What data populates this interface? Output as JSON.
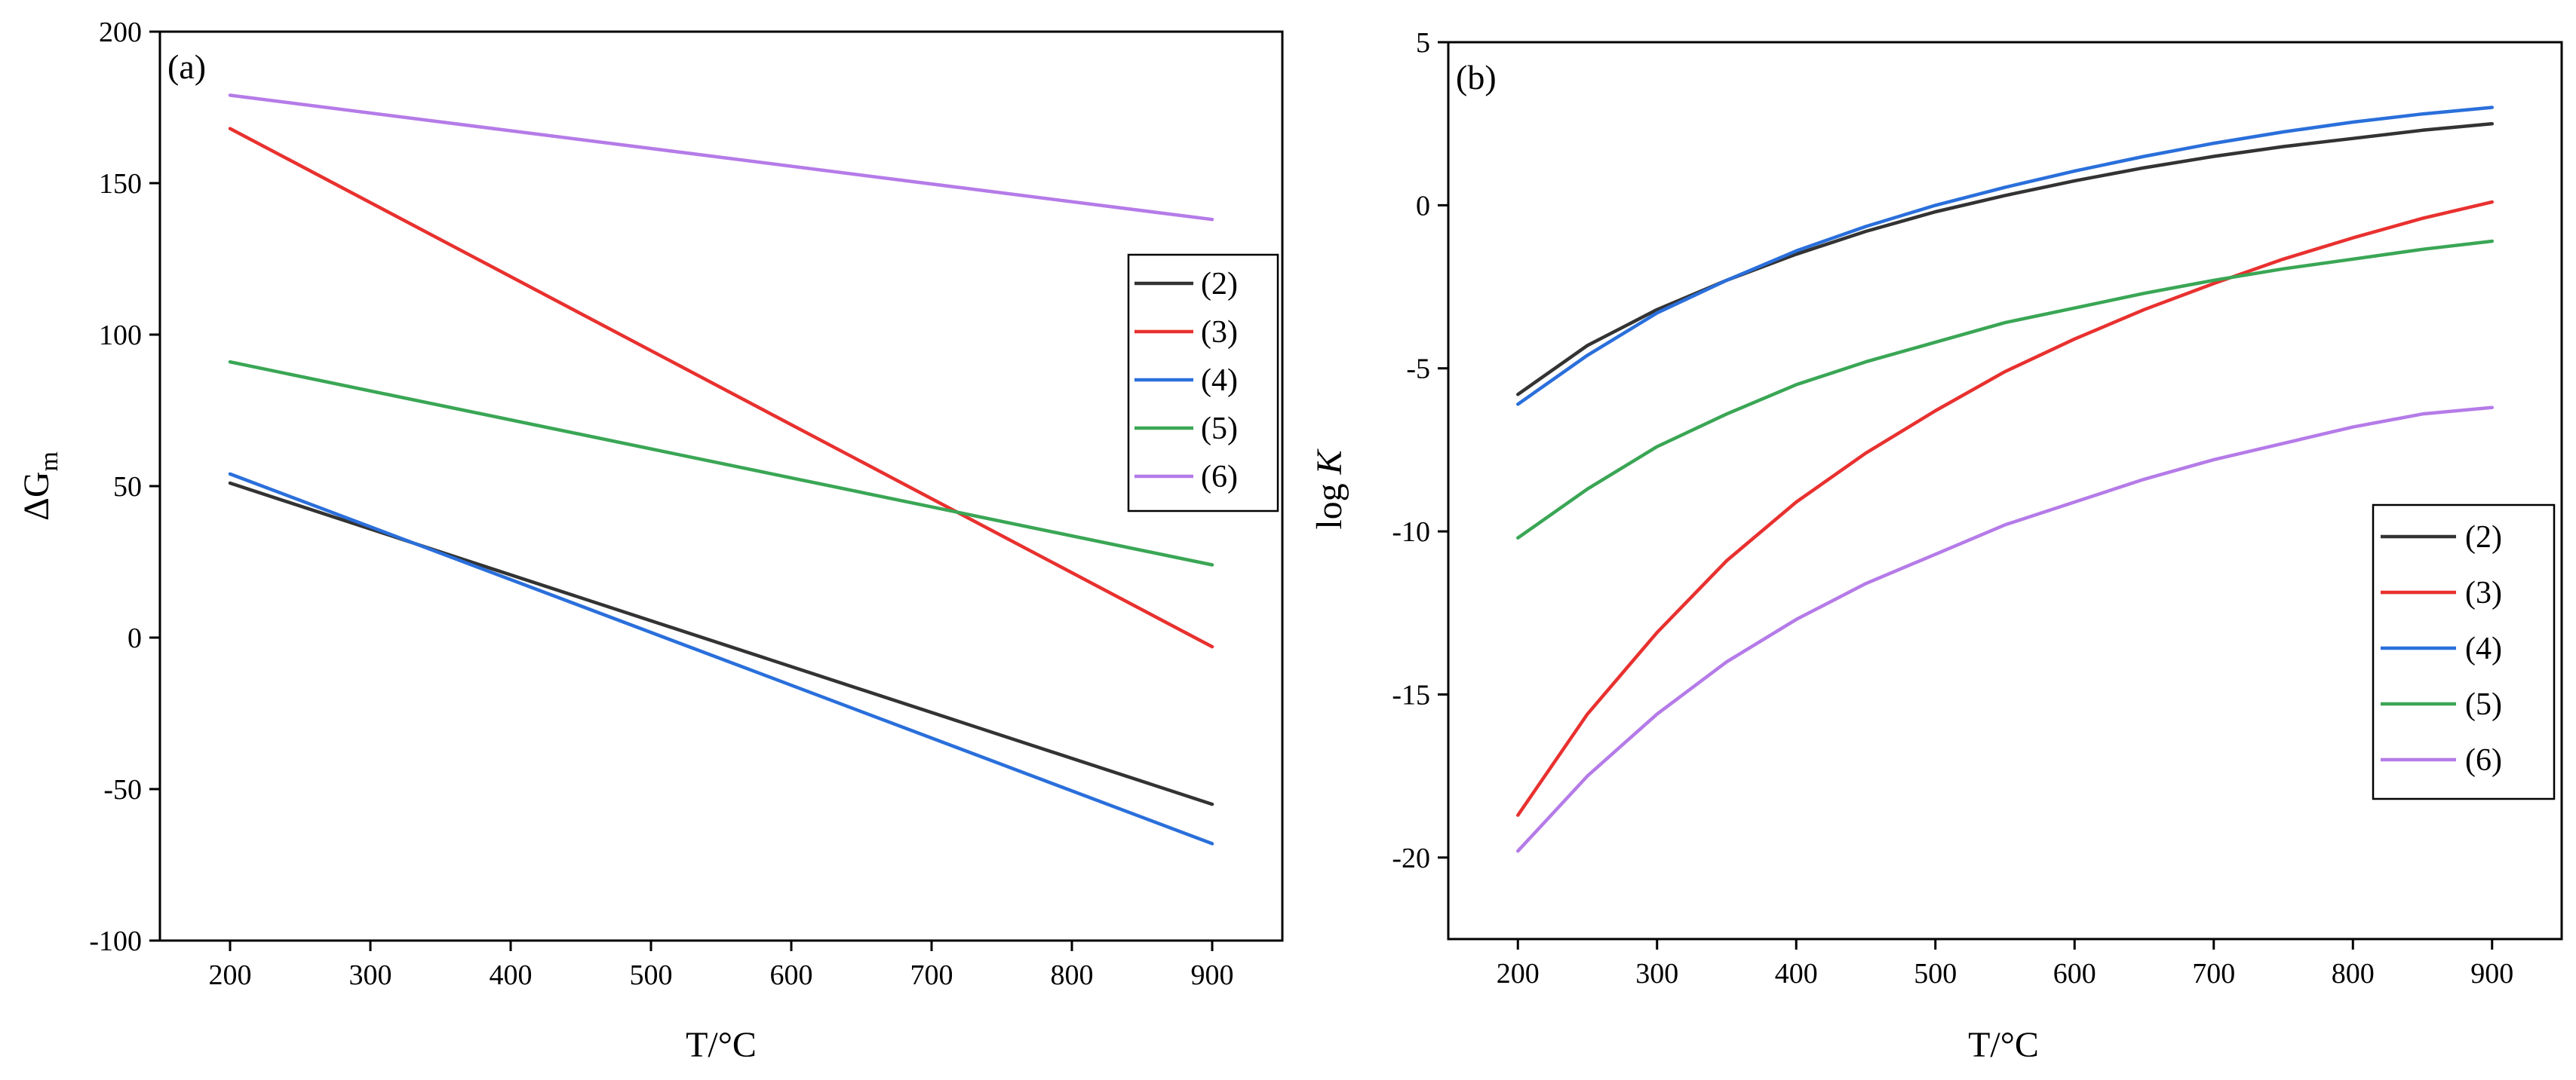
{
  "chart_data": [
    {
      "type": "line",
      "panel_label": "(a)",
      "xlabel": "T/°C",
      "ylabel": "ΔG",
      "ylabel_sub": "m",
      "xlim": [
        150,
        950
      ],
      "ylim": [
        -100,
        200
      ],
      "xticks": [
        200,
        300,
        400,
        500,
        600,
        700,
        800,
        900
      ],
      "yticks": [
        -100,
        -50,
        0,
        50,
        100,
        150,
        200
      ],
      "ytick_labels": [
        "-100",
        "-50",
        "0",
        "50",
        "100",
        "150",
        "200"
      ],
      "legend_position": "right-middle",
      "series": [
        {
          "name": "(2)",
          "color": "#333333",
          "x": [
            200,
            900
          ],
          "y": [
            51,
            -55
          ]
        },
        {
          "name": "(3)",
          "color": "#e8312f",
          "x": [
            200,
            900
          ],
          "y": [
            168,
            -3
          ]
        },
        {
          "name": "(4)",
          "color": "#2a6fdb",
          "x": [
            200,
            900
          ],
          "y": [
            54,
            -68
          ]
        },
        {
          "name": "(5)",
          "color": "#3aa655",
          "x": [
            200,
            900
          ],
          "y": [
            91,
            24
          ]
        },
        {
          "name": "(6)",
          "color": "#b57be8",
          "x": [
            200,
            900
          ],
          "y": [
            179,
            138
          ]
        }
      ]
    },
    {
      "type": "line",
      "panel_label": "(b)",
      "xlabel": "T/°C",
      "ylabel": "log",
      "ylabel_italic": "K",
      "xlim": [
        150,
        950
      ],
      "ylim": [
        -22.5,
        5
      ],
      "xticks": [
        200,
        300,
        400,
        500,
        600,
        700,
        800,
        900
      ],
      "yticks": [
        -20,
        -15,
        -10,
        -5,
        0,
        5
      ],
      "ytick_labels": [
        "-20",
        "-15",
        "-10",
        "-5",
        "0",
        "5"
      ],
      "legend_position": "bottom-right",
      "series": [
        {
          "name": "(2)",
          "color": "#333333",
          "x": [
            200,
            250,
            300,
            350,
            400,
            450,
            500,
            550,
            600,
            650,
            700,
            750,
            800,
            850,
            900
          ],
          "y": [
            -5.8,
            -4.3,
            -3.2,
            -2.3,
            -1.5,
            -0.8,
            -0.2,
            0.3,
            0.75,
            1.15,
            1.5,
            1.8,
            2.05,
            2.3,
            2.5
          ]
        },
        {
          "name": "(3)",
          "color": "#e8312f",
          "x": [
            200,
            250,
            300,
            350,
            400,
            450,
            500,
            550,
            600,
            650,
            700,
            750,
            800,
            850,
            900
          ],
          "y": [
            -18.7,
            -15.6,
            -13.1,
            -10.9,
            -9.1,
            -7.6,
            -6.3,
            -5.1,
            -4.1,
            -3.2,
            -2.4,
            -1.65,
            -1.0,
            -0.4,
            0.1
          ]
        },
        {
          "name": "(4)",
          "color": "#2a6fdb",
          "x": [
            200,
            250,
            300,
            350,
            400,
            450,
            500,
            550,
            600,
            650,
            700,
            750,
            800,
            850,
            900
          ],
          "y": [
            -6.1,
            -4.6,
            -3.3,
            -2.3,
            -1.4,
            -0.65,
            0.0,
            0.55,
            1.05,
            1.5,
            1.9,
            2.25,
            2.55,
            2.8,
            3.0
          ]
        },
        {
          "name": "(5)",
          "color": "#3aa655",
          "x": [
            200,
            250,
            300,
            350,
            400,
            450,
            500,
            550,
            600,
            650,
            700,
            750,
            800,
            850,
            900
          ],
          "y": [
            -10.2,
            -8.7,
            -7.4,
            -6.4,
            -5.5,
            -4.8,
            -4.2,
            -3.6,
            -3.15,
            -2.7,
            -2.3,
            -1.95,
            -1.65,
            -1.35,
            -1.1
          ]
        },
        {
          "name": "(6)",
          "color": "#b57be8",
          "x": [
            200,
            250,
            300,
            350,
            400,
            450,
            500,
            550,
            600,
            650,
            700,
            750,
            800,
            850,
            900
          ],
          "y": [
            -19.8,
            -17.5,
            -15.6,
            -14.0,
            -12.7,
            -11.6,
            -10.7,
            -9.8,
            -9.1,
            -8.4,
            -7.8,
            -7.3,
            -6.8,
            -6.4,
            -6.2
          ]
        }
      ]
    }
  ]
}
